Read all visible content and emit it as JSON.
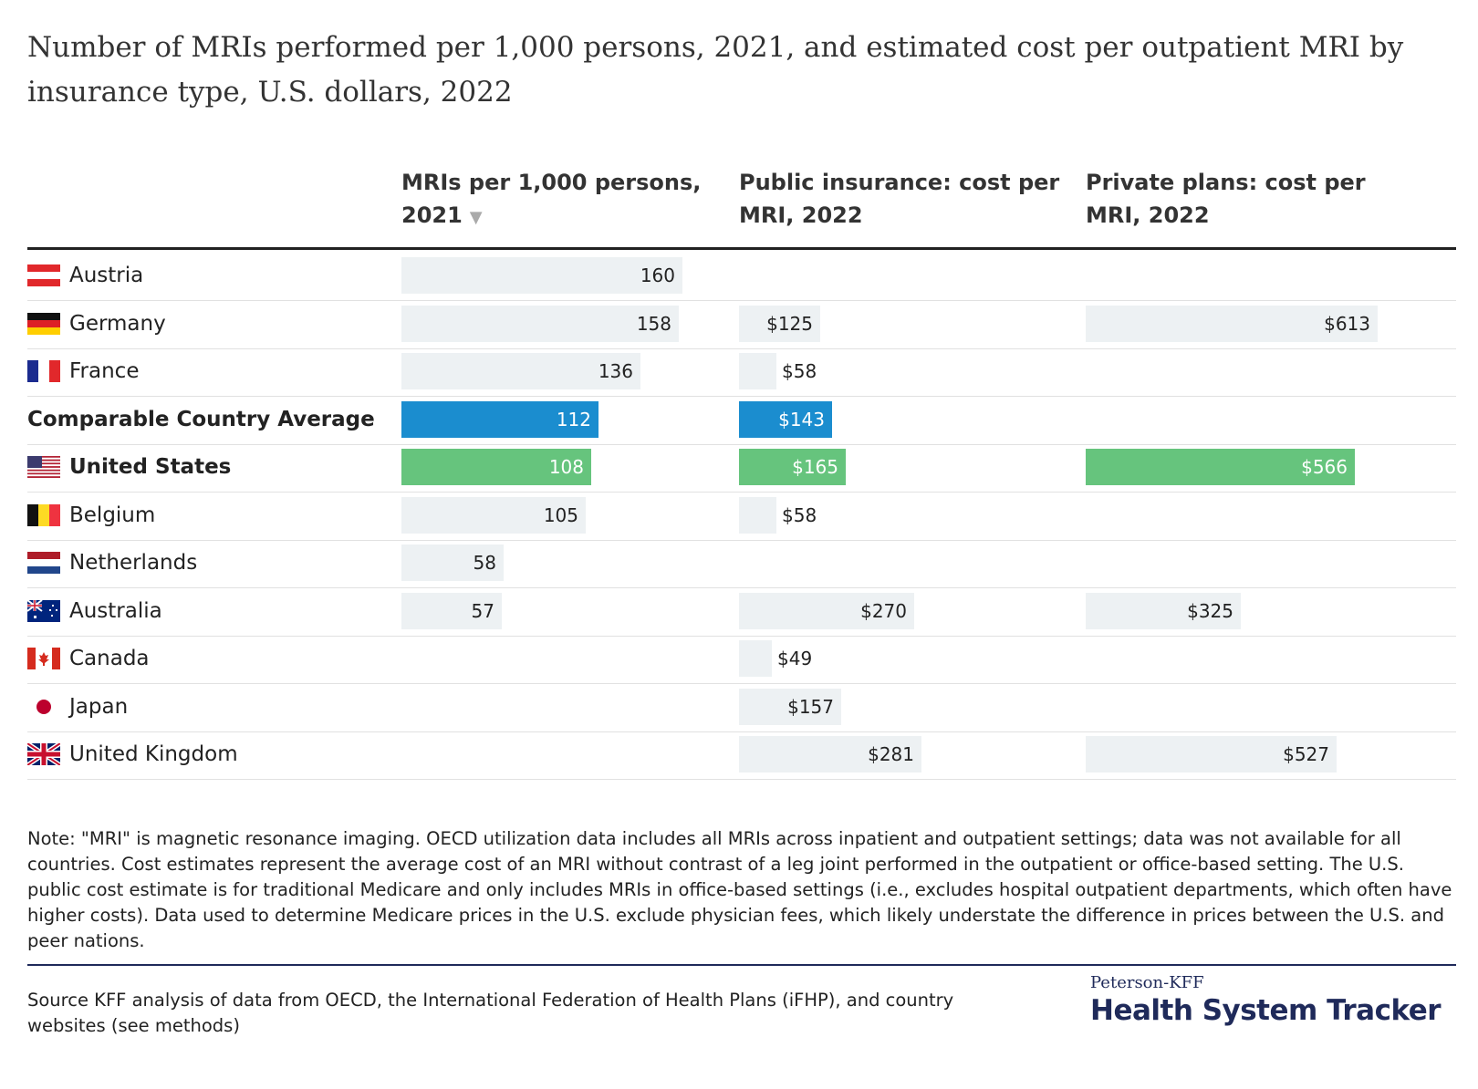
{
  "title": "Number of MRIs performed per 1,000 persons, 2021, and estimated cost per outpatient MRI by insurance type, U.S. dollars, 2022",
  "colors": {
    "default_bar": "#edf1f3",
    "average_bar": "#1b8dcf",
    "us_bar": "#66c47d"
  },
  "chart_data": {
    "type": "table",
    "columns": [
      {
        "key": "mri",
        "label": "MRIs per 1,000 persons, 2021",
        "sorted": "descending",
        "sort_icon": "▼",
        "max": 160,
        "prefix": ""
      },
      {
        "key": "public",
        "label": "Public insurance: cost per MRI, 2022",
        "max": 281,
        "prefix": "$"
      },
      {
        "key": "private",
        "label": "Private plans: cost per MRI, 2022",
        "max": 613,
        "prefix": "$"
      }
    ],
    "rows": [
      {
        "country": "Austria",
        "flag": "austria-flag",
        "highlight": "none",
        "mri": 160,
        "public": null,
        "private": null
      },
      {
        "country": "Germany",
        "flag": "germany-flag",
        "highlight": "none",
        "mri": 158,
        "public": 125,
        "private": 613
      },
      {
        "country": "France",
        "flag": "france-flag",
        "highlight": "none",
        "mri": 136,
        "public": 58,
        "private": null
      },
      {
        "country": "Comparable Country Average",
        "flag": "",
        "highlight": "average",
        "mri": 112,
        "public": 143,
        "private": null
      },
      {
        "country": "United States",
        "flag": "us-flag",
        "highlight": "us",
        "mri": 108,
        "public": 165,
        "private": 566
      },
      {
        "country": "Belgium",
        "flag": "belgium-flag",
        "highlight": "none",
        "mri": 105,
        "public": 58,
        "private": null
      },
      {
        "country": "Netherlands",
        "flag": "netherlands-flag",
        "highlight": "none",
        "mri": 58,
        "public": null,
        "private": null
      },
      {
        "country": "Australia",
        "flag": "australia-flag",
        "highlight": "none",
        "mri": 57,
        "public": 270,
        "private": 325
      },
      {
        "country": "Canada",
        "flag": "canada-flag",
        "highlight": "none",
        "mri": null,
        "public": 49,
        "private": null
      },
      {
        "country": "Japan",
        "flag": "japan-flag",
        "highlight": "none",
        "mri": null,
        "public": 157,
        "private": null
      },
      {
        "country": "United Kingdom",
        "flag": "uk-flag",
        "highlight": "none",
        "mri": null,
        "public": 281,
        "private": 527
      }
    ]
  },
  "note": "Note: \"MRI\" is magnetic resonance imaging. OECD utilization data includes all MRIs across inpatient and outpatient settings; data was not available for all countries. Cost estimates represent the average cost of an MRI without contrast of a leg joint performed in the outpatient or office-based setting. The U.S. public cost estimate is for traditional Medicare and only includes MRIs in office-based settings (i.e., excludes hospital outpatient departments, which often have higher costs). Data used to determine Medicare prices in the U.S. exclude physician fees, which likely understate the difference in prices between the U.S. and peer nations.",
  "source": "Source KFF analysis of data from OECD, the International Federation of Health Plans (iFHP), and country websites (see methods)",
  "logo": {
    "small": "Peterson-KFF",
    "big": "Health System Tracker"
  }
}
